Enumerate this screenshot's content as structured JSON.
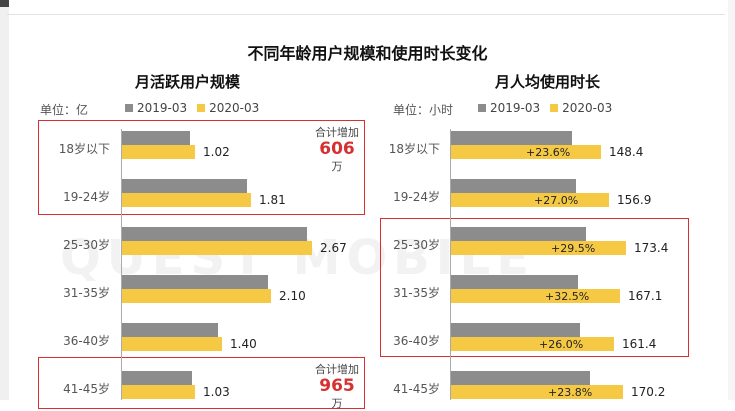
{
  "title": "不同年龄用户规模和使用时长变化",
  "watermark": "QUEST MOBILE",
  "colors": {
    "s2019": "#8c8c8c",
    "s2020": "#f6c944",
    "highlight": "#d63030"
  },
  "legend": [
    "2019-03",
    "2020-03"
  ],
  "chart_data": [
    {
      "type": "bar",
      "orientation": "horizontal",
      "title": "月活跃用户规模",
      "unit_label": "单位：亿",
      "categories": [
        "18岁以下",
        "19-24岁",
        "25-30岁",
        "31-35岁",
        "36-40岁",
        "41-45岁"
      ],
      "series": [
        {
          "name": "2019-03",
          "values": [
            0.96,
            1.75,
            2.6,
            2.05,
            1.35,
            0.98
          ]
        },
        {
          "name": "2020-03",
          "values": [
            1.02,
            1.81,
            2.67,
            2.1,
            1.4,
            1.03
          ]
        }
      ],
      "value_labels": [
        "1.02",
        "1.81",
        "2.67",
        "2.10",
        "1.40",
        "1.03"
      ],
      "xlim": [
        0,
        3.2
      ],
      "annotations": [
        {
          "label": "合计增加",
          "value": "606",
          "unit": "万"
        },
        {
          "label": "合计增加",
          "value": "965",
          "unit": "万"
        }
      ]
    },
    {
      "type": "bar",
      "orientation": "horizontal",
      "title": "月人均使用时长",
      "unit_label": "单位：小时",
      "categories": [
        "18岁以下",
        "19-24岁",
        "25-30岁",
        "31-35岁",
        "36-40岁",
        "41-45岁"
      ],
      "series": [
        {
          "name": "2019-03",
          "values": [
            120,
            123.5,
            133.9,
            126.1,
            128.1,
            137.5
          ]
        },
        {
          "name": "2020-03",
          "values": [
            148.4,
            156.9,
            173.4,
            167.1,
            161.4,
            170.2
          ]
        }
      ],
      "value_labels": [
        "148.4",
        "156.9",
        "173.4",
        "167.1",
        "161.4",
        "170.2"
      ],
      "growth_labels": [
        "+23.6%",
        "+27.0%",
        "+29.5%",
        "+32.5%",
        "+26.0%",
        "+23.8%"
      ],
      "xlim": [
        0,
        220
      ]
    }
  ]
}
